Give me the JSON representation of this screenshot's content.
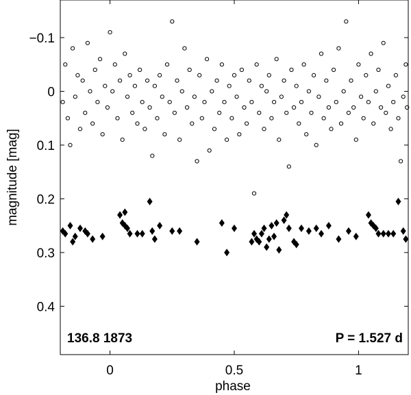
{
  "chart_data": {
    "type": "scatter",
    "title": "",
    "xlabel": "phase",
    "ylabel": "magnitude  [mag]",
    "xlim": [
      -0.2,
      1.2
    ],
    "ylim": [
      -0.17,
      0.49
    ],
    "y_inverted": true,
    "grid": false,
    "x_ticks": [
      0,
      0.5,
      1
    ],
    "x_tick_labels": [
      "0",
      "0.5",
      "1"
    ],
    "y_ticks": [
      -0.1,
      0,
      0.1,
      0.2,
      0.3,
      0.4
    ],
    "y_tick_labels": [
      "−0.1",
      "0",
      "0.1",
      "0.2",
      "0.3",
      "0.4"
    ],
    "annotations": {
      "left": "136.8 1873",
      "right": "P = 1.527 d"
    },
    "series": [
      {
        "marker": "open-circle",
        "color": "#000000",
        "points": [
          [
            -0.19,
            0.02
          ],
          [
            -0.18,
            -0.05
          ],
          [
            -0.17,
            0.05
          ],
          [
            -0.16,
            0.1
          ],
          [
            -0.15,
            -0.08
          ],
          [
            -0.14,
            0.01
          ],
          [
            -0.13,
            -0.03
          ],
          [
            -0.12,
            0.07
          ],
          [
            -0.11,
            -0.02
          ],
          [
            -0.1,
            0.04
          ],
          [
            -0.09,
            -0.09
          ],
          [
            -0.08,
            0.0
          ],
          [
            -0.07,
            0.06
          ],
          [
            -0.06,
            -0.04
          ],
          [
            -0.05,
            0.02
          ],
          [
            -0.04,
            -0.06
          ],
          [
            -0.03,
            0.08
          ],
          [
            -0.02,
            -0.01
          ],
          [
            -0.01,
            0.03
          ],
          [
            0.0,
            -0.11
          ],
          [
            0.01,
            0.0
          ],
          [
            0.02,
            -0.05
          ],
          [
            0.03,
            0.05
          ],
          [
            0.04,
            -0.02
          ],
          [
            0.05,
            0.09
          ],
          [
            0.06,
            -0.07
          ],
          [
            0.07,
            0.01
          ],
          [
            0.08,
            -0.03
          ],
          [
            0.09,
            0.04
          ],
          [
            0.1,
            -0.01
          ],
          [
            0.11,
            0.06
          ],
          [
            0.12,
            -0.04
          ],
          [
            0.13,
            0.02
          ],
          [
            0.14,
            0.07
          ],
          [
            0.15,
            -0.02
          ],
          [
            0.16,
            0.03
          ],
          [
            0.17,
            0.12
          ],
          [
            0.18,
            -0.01
          ],
          [
            0.19,
            0.05
          ],
          [
            0.2,
            -0.03
          ],
          [
            0.21,
            0.01
          ],
          [
            0.22,
            0.08
          ],
          [
            0.23,
            -0.05
          ],
          [
            0.24,
            0.02
          ],
          [
            0.25,
            -0.13
          ],
          [
            0.26,
            0.04
          ],
          [
            0.27,
            -0.02
          ],
          [
            0.28,
            0.09
          ],
          [
            0.29,
            0.0
          ],
          [
            0.3,
            -0.08
          ],
          [
            0.31,
            0.03
          ],
          [
            0.32,
            -0.04
          ],
          [
            0.33,
            0.06
          ],
          [
            0.34,
            0.01
          ],
          [
            0.35,
            0.13
          ],
          [
            0.36,
            -0.03
          ],
          [
            0.37,
            0.05
          ],
          [
            0.38,
            0.02
          ],
          [
            0.39,
            -0.06
          ],
          [
            0.4,
            0.11
          ],
          [
            0.41,
            0.0
          ],
          [
            0.42,
            0.07
          ],
          [
            0.43,
            -0.02
          ],
          [
            0.44,
            0.04
          ],
          [
            0.45,
            -0.05
          ],
          [
            0.46,
            0.02
          ],
          [
            0.47,
            0.09
          ],
          [
            0.48,
            -0.01
          ],
          [
            0.49,
            0.05
          ],
          [
            0.5,
            -0.03
          ],
          [
            0.51,
            0.01
          ],
          [
            0.52,
            0.08
          ],
          [
            0.53,
            -0.04
          ],
          [
            0.54,
            0.03
          ],
          [
            0.55,
            0.06
          ],
          [
            0.56,
            -0.02
          ],
          [
            0.57,
            0.02
          ],
          [
            0.58,
            0.19
          ],
          [
            0.59,
            -0.05
          ],
          [
            0.6,
            0.04
          ],
          [
            0.61,
            -0.01
          ],
          [
            0.62,
            0.07
          ],
          [
            0.63,
            0.0
          ],
          [
            0.64,
            -0.03
          ],
          [
            0.65,
            0.05
          ],
          [
            0.66,
            0.02
          ],
          [
            0.67,
            -0.06
          ],
          [
            0.68,
            0.09
          ],
          [
            0.69,
            0.01
          ],
          [
            0.7,
            -0.02
          ],
          [
            0.71,
            0.04
          ],
          [
            0.72,
            0.14
          ],
          [
            0.73,
            -0.04
          ],
          [
            0.74,
            0.03
          ],
          [
            0.75,
            -0.01
          ],
          [
            0.76,
            0.06
          ],
          [
            0.77,
            0.02
          ],
          [
            0.78,
            -0.05
          ],
          [
            0.79,
            0.08
          ],
          [
            0.8,
            0.0
          ],
          [
            0.81,
            0.04
          ],
          [
            0.82,
            -0.03
          ],
          [
            0.83,
            0.1
          ],
          [
            0.84,
            0.01
          ],
          [
            0.85,
            -0.07
          ],
          [
            0.86,
            0.05
          ],
          [
            0.87,
            -0.02
          ],
          [
            0.88,
            0.03
          ],
          [
            0.89,
            0.07
          ],
          [
            0.9,
            -0.04
          ],
          [
            0.91,
            0.02
          ],
          [
            0.92,
            -0.08
          ],
          [
            0.93,
            0.06
          ],
          [
            0.94,
            0.0
          ],
          [
            0.95,
            -0.13
          ],
          [
            0.96,
            0.04
          ],
          [
            0.97,
            -0.02
          ],
          [
            0.98,
            0.03
          ],
          [
            0.99,
            0.09
          ],
          [
            1.0,
            -0.05
          ],
          [
            1.01,
            0.01
          ],
          [
            1.02,
            0.05
          ],
          [
            1.03,
            -0.03
          ],
          [
            1.04,
            0.02
          ],
          [
            1.05,
            -0.07
          ],
          [
            1.06,
            0.06
          ],
          [
            1.07,
            0.0
          ],
          [
            1.08,
            -0.04
          ],
          [
            1.09,
            0.03
          ],
          [
            1.1,
            -0.09
          ],
          [
            1.11,
            0.04
          ],
          [
            1.12,
            -0.01
          ],
          [
            1.13,
            0.07
          ],
          [
            1.14,
            0.02
          ],
          [
            1.15,
            -0.03
          ],
          [
            1.16,
            0.05
          ],
          [
            1.17,
            0.13
          ],
          [
            1.18,
            0.01
          ],
          [
            1.19,
            -0.05
          ],
          [
            1.195,
            0.03
          ]
        ]
      },
      {
        "marker": "filled-diamond",
        "color": "#000000",
        "points": [
          [
            -0.19,
            0.26
          ],
          [
            -0.18,
            0.265
          ],
          [
            -0.16,
            0.25
          ],
          [
            -0.15,
            0.28
          ],
          [
            -0.14,
            0.27
          ],
          [
            -0.12,
            0.255
          ],
          [
            -0.1,
            0.26
          ],
          [
            -0.09,
            0.265
          ],
          [
            -0.07,
            0.275
          ],
          [
            -0.03,
            0.27
          ],
          [
            0.04,
            0.23
          ],
          [
            0.05,
            0.245
          ],
          [
            0.06,
            0.225
          ],
          [
            0.06,
            0.25
          ],
          [
            0.07,
            0.255
          ],
          [
            0.08,
            0.265
          ],
          [
            0.11,
            0.265
          ],
          [
            0.13,
            0.265
          ],
          [
            0.16,
            0.205
          ],
          [
            0.17,
            0.26
          ],
          [
            0.18,
            0.275
          ],
          [
            0.2,
            0.25
          ],
          [
            0.25,
            0.26
          ],
          [
            0.28,
            0.26
          ],
          [
            0.35,
            0.28
          ],
          [
            0.45,
            0.245
          ],
          [
            0.47,
            0.3
          ],
          [
            0.5,
            0.255
          ],
          [
            0.57,
            0.28
          ],
          [
            0.58,
            0.265
          ],
          [
            0.59,
            0.275
          ],
          [
            0.6,
            0.28
          ],
          [
            0.61,
            0.265
          ],
          [
            0.62,
            0.255
          ],
          [
            0.63,
            0.29
          ],
          [
            0.64,
            0.275
          ],
          [
            0.65,
            0.25
          ],
          [
            0.66,
            0.27
          ],
          [
            0.67,
            0.245
          ],
          [
            0.68,
            0.295
          ],
          [
            0.7,
            0.24
          ],
          [
            0.71,
            0.23
          ],
          [
            0.72,
            0.255
          ],
          [
            0.74,
            0.28
          ],
          [
            0.75,
            0.285
          ],
          [
            0.77,
            0.255
          ],
          [
            0.8,
            0.26
          ],
          [
            0.83,
            0.255
          ],
          [
            0.85,
            0.265
          ],
          [
            0.88,
            0.25
          ],
          [
            0.92,
            0.275
          ],
          [
            0.96,
            0.26
          ],
          [
            0.99,
            0.27
          ],
          [
            1.04,
            0.23
          ],
          [
            1.05,
            0.245
          ],
          [
            1.06,
            0.25
          ],
          [
            1.07,
            0.255
          ],
          [
            1.08,
            0.265
          ],
          [
            1.1,
            0.265
          ],
          [
            1.12,
            0.265
          ],
          [
            1.14,
            0.265
          ],
          [
            1.16,
            0.205
          ],
          [
            1.18,
            0.26
          ],
          [
            1.19,
            0.275
          ]
        ]
      }
    ]
  }
}
